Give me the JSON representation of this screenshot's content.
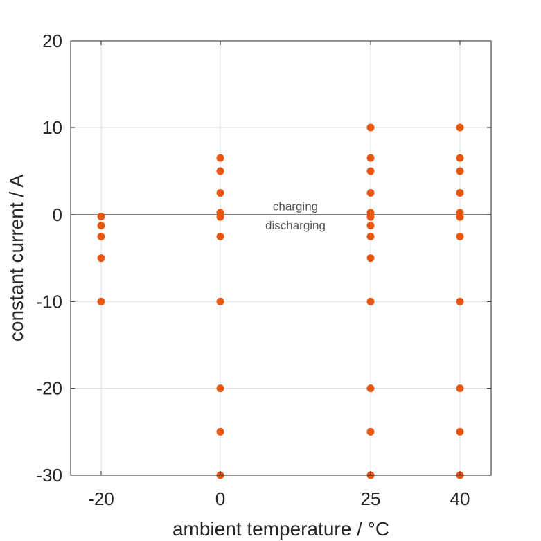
{
  "chart_data": {
    "type": "scatter",
    "title": "",
    "xlabel": "ambient temperature / °C",
    "ylabel": "constant current / A",
    "x_ticks": [
      -20,
      0,
      25,
      40
    ],
    "x_tick_labels": [
      "-20",
      "0",
      "25",
      "40"
    ],
    "y_ticks": [
      -30,
      -20,
      -10,
      0,
      10,
      20
    ],
    "y_tick_labels": [
      "-30",
      "-20",
      "-10",
      "0",
      "10",
      "20"
    ],
    "ylim": [
      -30,
      20
    ],
    "grid": true,
    "zero_line": true,
    "annotations": [
      {
        "text": "charging",
        "x": 12.5,
        "y": 1
      },
      {
        "text": "discharging",
        "x": 12.5,
        "y": -1.2
      }
    ],
    "marker_color": "#e8560f",
    "series": [
      {
        "points": [
          {
            "x": -20,
            "y": -0.2
          },
          {
            "x": -20,
            "y": -1.25
          },
          {
            "x": -20,
            "y": -2.5
          },
          {
            "x": -20,
            "y": -5
          },
          {
            "x": -20,
            "y": -10
          },
          {
            "x": 0,
            "y": 6.5
          },
          {
            "x": 0,
            "y": 5
          },
          {
            "x": 0,
            "y": 2.5
          },
          {
            "x": 0,
            "y": 0.25
          },
          {
            "x": 0,
            "y": -0.25
          },
          {
            "x": 0,
            "y": -2.5
          },
          {
            "x": 0,
            "y": -10
          },
          {
            "x": 0,
            "y": -20
          },
          {
            "x": 0,
            "y": -25
          },
          {
            "x": 0,
            "y": -30
          },
          {
            "x": 25,
            "y": 10
          },
          {
            "x": 25,
            "y": 6.5
          },
          {
            "x": 25,
            "y": 5
          },
          {
            "x": 25,
            "y": 2.5
          },
          {
            "x": 25,
            "y": 0.25
          },
          {
            "x": 25,
            "y": -0.25
          },
          {
            "x": 25,
            "y": -1.25
          },
          {
            "x": 25,
            "y": -2.5
          },
          {
            "x": 25,
            "y": -5
          },
          {
            "x": 25,
            "y": -10
          },
          {
            "x": 25,
            "y": -20
          },
          {
            "x": 25,
            "y": -25
          },
          {
            "x": 25,
            "y": -30
          },
          {
            "x": 40,
            "y": 10
          },
          {
            "x": 40,
            "y": 6.5
          },
          {
            "x": 40,
            "y": 5
          },
          {
            "x": 40,
            "y": 2.5
          },
          {
            "x": 40,
            "y": 0.25
          },
          {
            "x": 40,
            "y": -0.25
          },
          {
            "x": 40,
            "y": -2.5
          },
          {
            "x": 40,
            "y": -10
          },
          {
            "x": 40,
            "y": -20
          },
          {
            "x": 40,
            "y": -25
          },
          {
            "x": 40,
            "y": -30
          }
        ]
      }
    ]
  }
}
